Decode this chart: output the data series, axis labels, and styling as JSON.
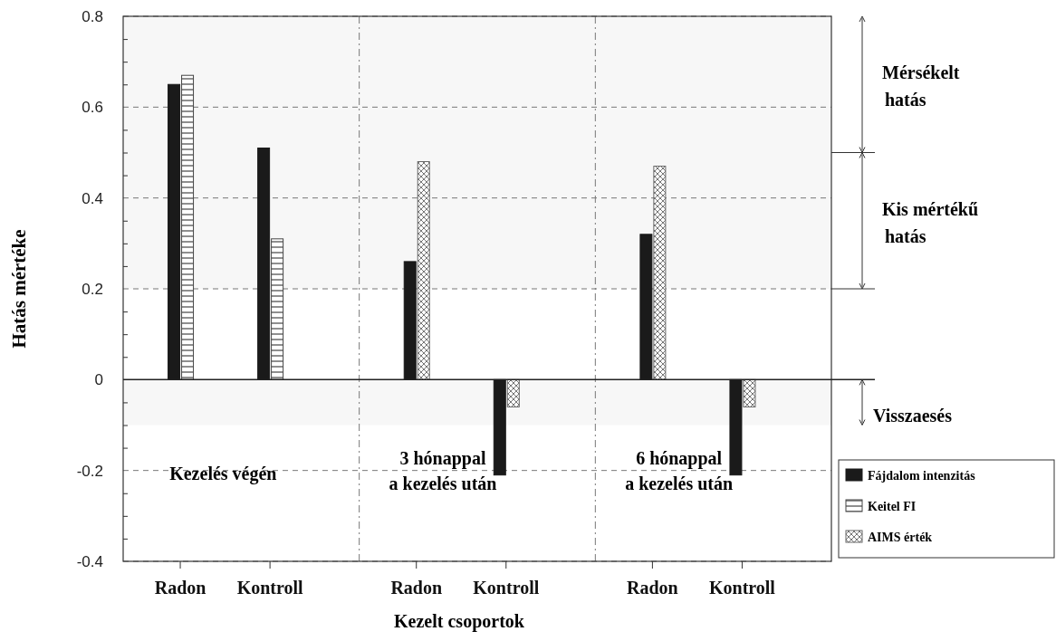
{
  "chart_data": {
    "type": "bar",
    "xlabel": "Kezelt csoportok",
    "ylabel": "Hatás mértéke",
    "categories": [
      "Radon",
      "Kontroll",
      "Radon",
      "Kontroll",
      "Radon",
      "Kontroll"
    ],
    "series": [
      {
        "name": "Fájdalom intenzitás",
        "color": "#1a1a1a",
        "values": [
          0.65,
          0.51,
          0.26,
          -0.21,
          0.32,
          -0.21
        ]
      },
      {
        "name": "Keitel FI",
        "color": "#444444",
        "values": [
          0.67,
          0.31,
          null,
          null,
          null,
          null
        ]
      },
      {
        "name": "AIMS érték",
        "color": "#666666",
        "values": [
          null,
          null,
          0.48,
          -0.06,
          0.47,
          -0.06
        ]
      }
    ],
    "ylim": [
      -0.4,
      0.8
    ],
    "yticks": [
      -0.4,
      {
        "value": -0.35,
        "label": null
      },
      {
        "value": -0.3,
        "label": null
      },
      {
        "value": -0.25,
        "label": null
      },
      -0.2,
      {
        "value": -0.15,
        "label": null
      },
      {
        "value": -0.1,
        "label": null
      },
      {
        "value": -0.05,
        "label": null
      },
      0,
      {
        "value": 0.05,
        "label": null
      },
      {
        "value": 0.1,
        "label": null
      },
      {
        "value": 0.15,
        "label": null
      },
      0.2,
      {
        "value": 0.25,
        "label": null
      },
      {
        "value": 0.3,
        "label": null
      },
      {
        "value": 0.35,
        "label": null
      },
      0.4,
      {
        "value": 0.45,
        "label": null
      },
      {
        "value": 0.5,
        "label": null
      },
      {
        "value": 0.55,
        "label": null
      },
      0.6,
      {
        "value": 0.65,
        "label": null
      },
      {
        "value": 0.7,
        "label": null
      },
      {
        "value": 0.75,
        "label": null
      },
      0.8
    ],
    "grid": "y",
    "legend": "right",
    "bands": [
      {
        "axis": "y",
        "from": 0.5,
        "to": 0.8,
        "label": "Mérsékelt hatás"
      },
      {
        "axis": "y",
        "from": 0.2,
        "to": 0.5,
        "label": "Kis mértékű hatás"
      },
      {
        "axis": "y",
        "from": -0.1,
        "to": 0,
        "label": "Visszaesés"
      }
    ],
    "annotations": [
      "Kezelés végén",
      "3 hónappal a kezelés után",
      "6 hónappal a kezelés után"
    ]
  }
}
